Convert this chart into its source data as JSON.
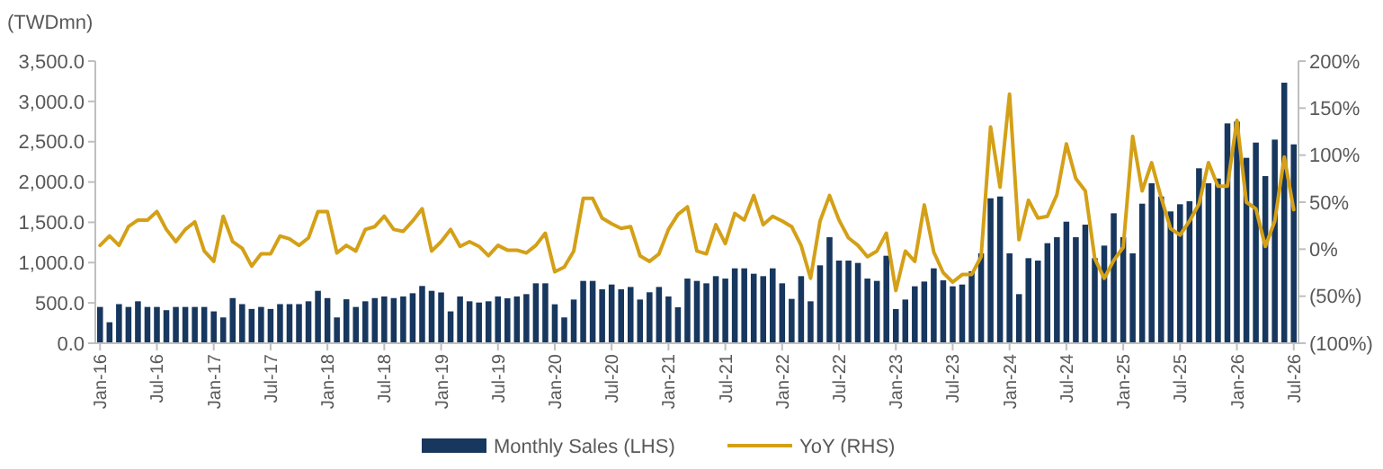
{
  "chart_data": {
    "type": "bar",
    "ylabel": "(TWDmn)",
    "categories": [
      "Jan-16",
      null,
      null,
      null,
      null,
      null,
      "Jul-16",
      null,
      null,
      null,
      null,
      null,
      "Jan-17",
      null,
      null,
      null,
      null,
      null,
      "Jul-17",
      null,
      null,
      null,
      null,
      null,
      "Jan-18",
      null,
      null,
      null,
      null,
      null,
      "Jul-18",
      null,
      null,
      null,
      null,
      null,
      "Jan-19",
      null,
      null,
      null,
      null,
      null,
      "Jul-19",
      null,
      null,
      null,
      null,
      null,
      "Jan-20",
      null,
      null,
      null,
      null,
      null,
      "Jul-20",
      null,
      null,
      null,
      null,
      null,
      "Jan-21",
      null,
      null,
      null,
      null,
      null,
      "Jul-21",
      null,
      null,
      null,
      null,
      null,
      "Jan-22",
      null,
      null,
      null,
      null,
      null,
      "Jul-22",
      null,
      null,
      null,
      null,
      null,
      "Jan-23",
      null,
      null,
      null,
      null,
      null,
      "Jul-23",
      null,
      null,
      null,
      null,
      null,
      "Jan-24",
      null,
      null,
      null,
      null,
      null,
      "Jul-24",
      null,
      null,
      null,
      null,
      null,
      "Jan-25",
      null,
      null,
      null,
      null,
      null,
      "Jul-25",
      null,
      null,
      null,
      null,
      null,
      "Jan-26",
      null,
      null,
      null,
      null,
      null,
      "Jul-26"
    ],
    "series": [
      {
        "name": "Monthly Sales (LHS)",
        "color": "#17375e",
        "values": [
          450,
          260,
          485,
          450,
          520,
          450,
          450,
          410,
          450,
          450,
          450,
          450,
          395,
          320,
          560,
          485,
          425,
          450,
          425,
          485,
          485,
          485,
          520,
          650,
          560,
          320,
          545,
          450,
          520,
          560,
          580,
          560,
          580,
          620,
          710,
          650,
          630,
          395,
          580,
          520,
          505,
          520,
          580,
          557,
          580,
          609,
          743,
          743,
          483,
          320,
          542,
          773,
          773,
          669,
          728,
          669,
          698,
          542,
          632,
          698,
          580,
          446,
          802,
          773,
          743,
          832,
          802,
          929,
          929,
          862,
          832,
          929,
          743,
          550,
          832,
          520,
          966,
          1315,
          1025,
          1025,
          996,
          802,
          773,
          1085,
          424,
          542,
          706,
          765,
          929,
          780,
          706,
          728,
          892,
          1115,
          1798,
          1820,
          1115,
          609,
          1055,
          1025,
          1241,
          1315,
          1508,
          1315,
          1471,
          1055,
          1211,
          1612,
          1315,
          1115,
          1731,
          1984,
          1820,
          1635,
          1724,
          1761,
          2170,
          1984,
          2043,
          2727,
          2749,
          2300,
          2489,
          2073,
          2526,
          3232,
          2467
        ]
      },
      {
        "name": "YoY (RHS)",
        "type": "line",
        "axis": "y2",
        "color": "#d4a017",
        "values": [
          4,
          14,
          4,
          24,
          31,
          31,
          40,
          21,
          8,
          21,
          29,
          -2,
          -13,
          35,
          8,
          1,
          -18,
          -5,
          -5,
          14,
          11,
          4,
          12,
          40,
          40,
          -4,
          4,
          -2,
          21,
          24,
          35,
          21,
          19,
          30,
          43,
          -2,
          8,
          21,
          3,
          8,
          3,
          -7,
          4,
          -1,
          -1,
          -4,
          4,
          17,
          -24,
          -19,
          -2,
          54,
          54,
          33,
          27,
          22,
          24,
          -7,
          -13,
          -5,
          21,
          37,
          45,
          -2,
          -5,
          26,
          6,
          38,
          31,
          57,
          26,
          35,
          30,
          24,
          4,
          -31,
          30,
          57,
          31,
          12,
          4,
          -8,
          -2,
          17,
          -44,
          -2,
          -13,
          47,
          -3,
          -25,
          -35,
          -27,
          -27,
          -8,
          130,
          66,
          165,
          10,
          52,
          33,
          35,
          58,
          112,
          75,
          62,
          -10,
          -31,
          -12,
          2,
          120,
          62,
          92,
          55,
          22,
          15,
          30,
          48,
          92,
          67,
          67,
          137,
          50,
          43,
          3,
          30,
          98,
          42
        ]
      }
    ],
    "ylim": [
      0,
      3500
    ],
    "yticks": [
      {
        "value": 0,
        "label": "0.0"
      },
      {
        "value": 500,
        "label": "500.0"
      },
      {
        "value": 1000,
        "label": "1,000.0"
      },
      {
        "value": 1500,
        "label": "1,500.0"
      },
      {
        "value": 2000,
        "label": "2,000.0"
      },
      {
        "value": 2500,
        "label": "2,500.0"
      },
      {
        "value": 3000,
        "label": "3,000.0"
      },
      {
        "value": 3500,
        "label": "3,500.0"
      }
    ],
    "y2lim": [
      -100,
      200
    ],
    "y2ticks": [
      {
        "value": -100,
        "label": "(100%)"
      },
      {
        "value": -50,
        "label": "(50%)"
      },
      {
        "value": 0,
        "label": "0%"
      },
      {
        "value": 50,
        "label": "50%"
      },
      {
        "value": 100,
        "label": "100%"
      },
      {
        "value": 150,
        "label": "150%"
      },
      {
        "value": 200,
        "label": "200%"
      }
    ],
    "legend": "bottom"
  }
}
